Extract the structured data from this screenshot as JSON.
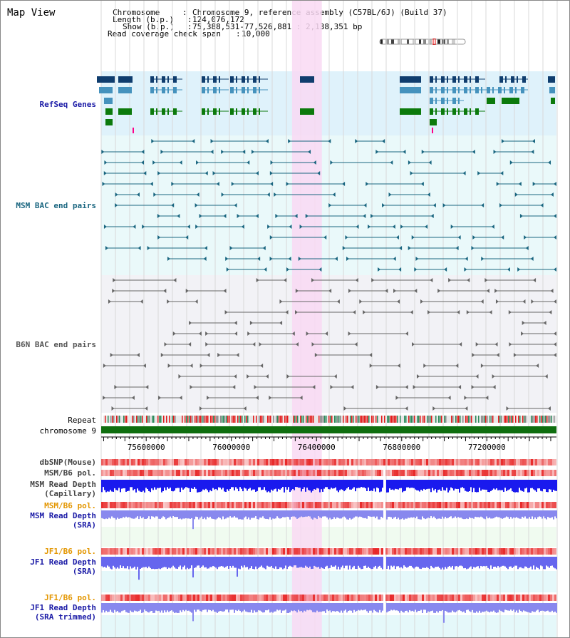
{
  "title": "Map View",
  "info": {
    "chromosome_label": "Chromosome",
    "chromosome_value": "Chromosome 9, reference assembly (C57BL/6J) (Build 37)",
    "length_label": "Length (b.p.)",
    "length_value": "124,076,172",
    "show_label": "Show (b.p.)",
    "show_value": "75,388,531-77,526,881 : 2,138,351 bp",
    "coverage_label": "Read coverage check span",
    "coverage_value": "10,000"
  },
  "tracks": {
    "refseq": {
      "label": "RefSeq Genes",
      "color": "#1a1aa6"
    },
    "msm_bac": {
      "label": "MSM BAC end pairs",
      "color": "#1a6680"
    },
    "b6n_bac": {
      "label": "B6N BAC end pairs",
      "color": "#555555"
    },
    "repeat": {
      "label": "Repeat"
    },
    "chromosome": {
      "label": "chromosome 9"
    },
    "dbsnp": {
      "label": "dbSNP(Mouse)"
    },
    "msm_b6_pol_1": {
      "label": "MSM/B6 pol."
    },
    "msm_depth_cap": {
      "label": "MSM Read Depth\n(Capillary)"
    },
    "msm_b6_pol_2": {
      "label": "MSM/B6 pol.",
      "color": "#e39600"
    },
    "msm_depth_sra": {
      "label": "MSM Read Depth\n(SRA)",
      "color": "#1a1aa6"
    },
    "jf1_b6_pol_1": {
      "label": "JF1/B6 pol.",
      "color": "#e39600"
    },
    "jf1_depth_sra": {
      "label": "JF1 Read Depth\n(SRA)",
      "color": "#1a1aa6"
    },
    "jf1_b6_pol_2": {
      "label": "JF1/B6 pol.",
      "color": "#e39600"
    },
    "jf1_depth_trim": {
      "label": "JF1 Read Depth\n(SRA trimmed)",
      "color": "#1a1aa6"
    }
  },
  "axis": {
    "ticks": [
      "75600000",
      "76000000",
      "76400000",
      "76800000",
      "77200000"
    ],
    "tick_values": [
      75600000,
      76000000,
      76400000,
      76800000,
      77200000
    ],
    "range": [
      75388531,
      77526881
    ]
  },
  "highlight_region": [
    76285000,
    76425000
  ],
  "colors": {
    "refseq_bg": "#dff2fb",
    "msm_bg": "#eaf9fa",
    "b6n_bg": "#f2f2f6",
    "highlight": "#f9d9f3",
    "sra_bg": "#f0fbf0",
    "jf1_bg": "#e5f8fa",
    "gene_dark": "#0f3d6e",
    "gene_mid": "#4592bd",
    "gene_green": "#0c7a0c",
    "chromosome_bar": "#0f6e0f"
  },
  "icons": {
    "ideogram": "chromosome-ideogram-icon"
  }
}
